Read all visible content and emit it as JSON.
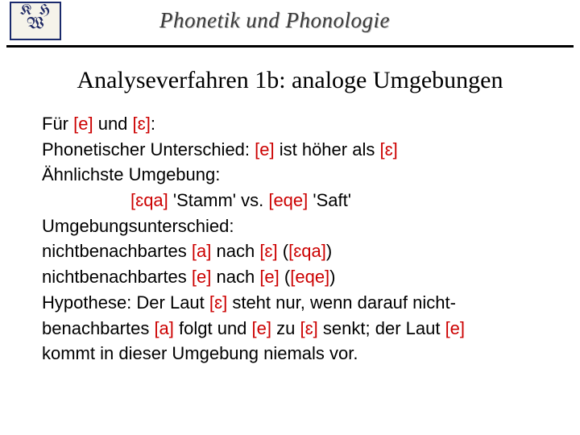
{
  "header": {
    "logo_line1": "K H",
    "logo_line2": "W",
    "course_title": "Phonetik und Phonologie"
  },
  "title": "Analyseverfahren 1b: analoge Umgebungen",
  "colors": {
    "ipa": "#cc0000",
    "text": "#000000",
    "rule": "#000000",
    "background": "#ffffff"
  },
  "typography": {
    "title_fontsize": 30,
    "body_fontsize": 22,
    "title_family": "Times New Roman",
    "body_family": "Arial"
  },
  "lines": {
    "l1a": "Für ",
    "l1b": "[e]",
    "l1c": " und ",
    "l1d": "[ɛ]",
    "l1e": ":",
    "l2a": "Phonetischer Unterschied: ",
    "l2b": "[e]",
    "l2c": " ist höher als ",
    "l2d": "[ɛ]",
    "l3": "Ähnlichste Umgebung:",
    "l4a": "[ɛqa]",
    "l4b": " 'Stamm' vs. ",
    "l4c": "[eqe]",
    "l4d": " 'Saft'",
    "l5": "Umgebungsunterschied:",
    "l6a": "nichtbenachbartes ",
    "l6b": "[a]",
    "l6c": " nach ",
    "l6d": "[ɛ]",
    "l6e": " (",
    "l6f": "[ɛqa]",
    "l6g": ")",
    "l7a": "nichtbenachbartes ",
    "l7b": "[e]",
    "l7c": " nach ",
    "l7d": "[e]",
    "l7e": " (",
    "l7f": "[eqe]",
    "l7g": ")",
    "l8a": "Hypothese: Der Laut ",
    "l8b": "[ɛ]",
    "l8c": " steht nur, wenn darauf nicht-",
    "l9a": "benachbartes ",
    "l9b": "[a]",
    "l9c": " folgt und ",
    "l9d": "[e]",
    "l9e": " zu ",
    "l9f": "[ɛ]",
    "l9g": " senkt; der Laut  ",
    "l9h": "[e]",
    "l10": "kommt in dieser Umgebung niemals vor."
  }
}
